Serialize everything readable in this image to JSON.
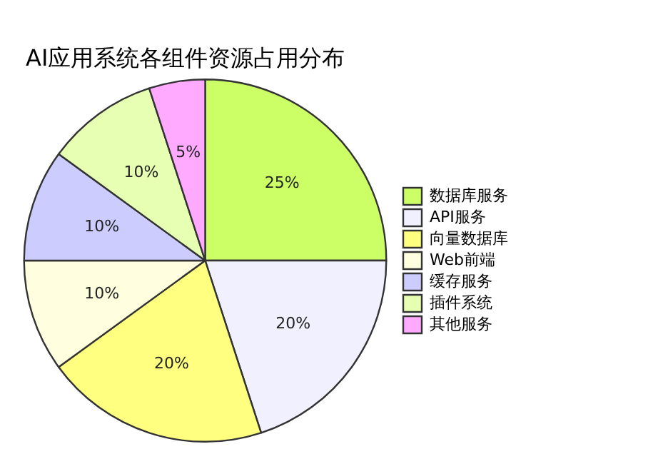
{
  "chart_data": {
    "type": "pie",
    "title": "AI应用系统各组件资源占用分布",
    "categories": [
      "数据库服务",
      "API服务",
      "向量数据库",
      "Web前端",
      "缓存服务",
      "插件系统",
      "其他服务"
    ],
    "values": [
      25,
      20,
      20,
      10,
      10,
      10,
      5
    ],
    "colors": [
      "#ccff66",
      "#f0f0ff",
      "#ffff80",
      "#ffffe0",
      "#ccccff",
      "#e6ffb3",
      "#ffaaff"
    ],
    "value_labels": [
      "25%",
      "20%",
      "20%",
      "10%",
      "10%",
      "10%",
      "5%"
    ],
    "legend": "right"
  }
}
